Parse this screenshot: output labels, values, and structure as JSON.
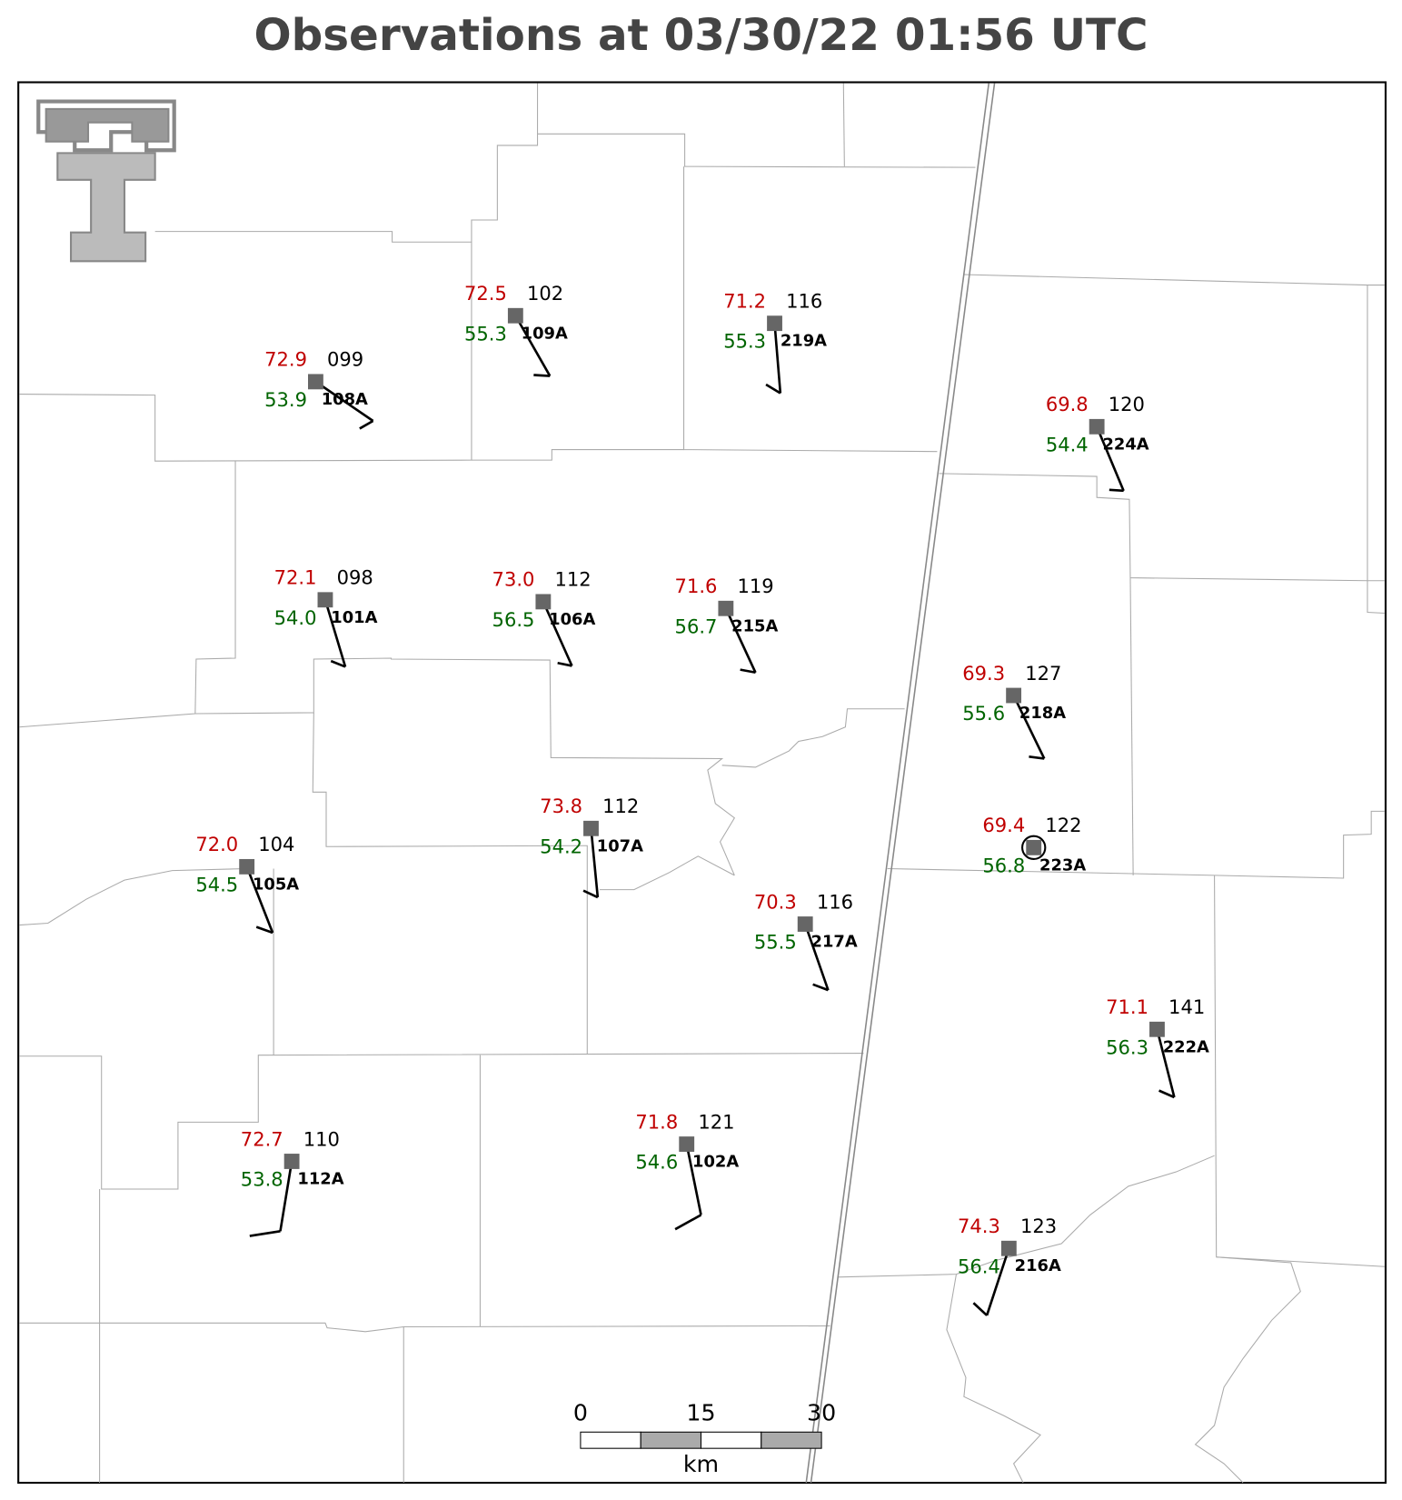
{
  "title": "Observations at 03/30/22 01:56 UTC",
  "stations": [
    {
      "temp": "72.9",
      "dew": "53.9",
      "pres": "099",
      "id": "108A"
    },
    {
      "temp": "72.5",
      "dew": "55.3",
      "pres": "102",
      "id": "109A"
    },
    {
      "temp": "71.2",
      "dew": "55.3",
      "pres": "116",
      "id": "219A"
    },
    {
      "temp": "69.8",
      "dew": "54.4",
      "pres": "120",
      "id": "224A"
    },
    {
      "temp": "72.1",
      "dew": "54.0",
      "pres": "098",
      "id": "101A"
    },
    {
      "temp": "73.0",
      "dew": "56.5",
      "pres": "112",
      "id": "106A"
    },
    {
      "temp": "71.6",
      "dew": "56.7",
      "pres": "119",
      "id": "215A"
    },
    {
      "temp": "69.3",
      "dew": "55.6",
      "pres": "127",
      "id": "218A"
    },
    {
      "temp": "69.4",
      "dew": "56.8",
      "pres": "122",
      "id": "223A"
    },
    {
      "temp": "73.8",
      "dew": "54.2",
      "pres": "112",
      "id": "107A"
    },
    {
      "temp": "72.0",
      "dew": "54.5",
      "pres": "104",
      "id": "105A"
    },
    {
      "temp": "70.3",
      "dew": "55.5",
      "pres": "116",
      "id": "217A"
    },
    {
      "temp": "71.1",
      "dew": "56.3",
      "pres": "141",
      "id": "222A"
    },
    {
      "temp": "72.7",
      "dew": "53.8",
      "pres": "110",
      "id": "112A"
    },
    {
      "temp": "71.8",
      "dew": "54.6",
      "pres": "121",
      "id": "102A"
    },
    {
      "temp": "74.3",
      "dew": "56.4",
      "pres": "123",
      "id": "216A"
    }
  ],
  "scale_bar": {
    "labels": [
      "0",
      "15",
      "30"
    ],
    "unit": "km"
  }
}
